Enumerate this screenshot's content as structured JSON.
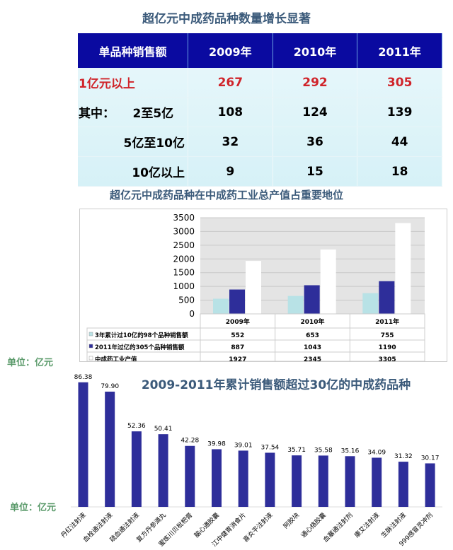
{
  "table1": {
    "title": "超亿元中成药品种数量增长显著",
    "headers": [
      "单品种销售额",
      "2009年",
      "2010年",
      "2011年"
    ],
    "rows": [
      {
        "label": "1亿元以上",
        "values": [
          "267",
          "292",
          "305"
        ]
      },
      {
        "label": "其中：　　2至5亿",
        "values": [
          "108",
          "124",
          "139"
        ]
      },
      {
        "label": "5亿至10亿",
        "values": [
          "32",
          "36",
          "44"
        ]
      },
      {
        "label": "10亿以上",
        "values": [
          "9",
          "15",
          "18"
        ]
      }
    ],
    "highlight_color": "#d0242a",
    "header_color": "#0a0aa0"
  },
  "chart_data": [
    {
      "type": "bar",
      "title": "超亿元中成药品种在中成药工业总产值占重要地位",
      "categories": [
        "2009年",
        "2010年",
        "2011年"
      ],
      "ylim": [
        0,
        3500
      ],
      "yticks": [
        0,
        500,
        1000,
        1500,
        2000,
        2500,
        3000,
        3500
      ],
      "grid": true,
      "legend": "data-table",
      "series": [
        {
          "name": "3年累计过10亿的98个品种销售额",
          "values": [
            552,
            653,
            755
          ],
          "color": "#b8e2e6"
        },
        {
          "name": "2011年过亿的305个品种销售额",
          "values": [
            887,
            1043,
            1190
          ],
          "color": "#2e2e9a"
        },
        {
          "name": "中成药工业产值",
          "values": [
            1927,
            2345,
            3305
          ],
          "color": "#ffffff"
        }
      ]
    },
    {
      "type": "bar",
      "title": "2009-2011年累计销售额超过30亿的中成药品种",
      "categories": [
        "丹红注射液",
        "血栓通注射液",
        "疏血通注射液",
        "复方丹参滴丸",
        "蜜炼川贝枇杷膏",
        "脑心通胶囊",
        "江中健胃消食片",
        "喜炎平注射液",
        "阿胶块",
        "通心络胶囊",
        "血塞通注射剂",
        "康艾注射液",
        "生脉注射液",
        "999感冒灵冲剂"
      ],
      "values": [
        86.38,
        79.9,
        52.36,
        50.41,
        42.28,
        39.98,
        39.01,
        37.54,
        35.71,
        35.58,
        35.16,
        34.09,
        31.32,
        30.17
      ],
      "labels": [
        "86.38",
        "79.90",
        "52.36",
        "50.41",
        "42.28",
        "39.98",
        "39.01",
        "37.54",
        "35.71",
        "35.58",
        "35.16",
        "34.09",
        "31.32",
        "30.17"
      ],
      "color": "#2e2e9a"
    }
  ],
  "units": {
    "top": "单位：亿元",
    "bottom": "单位：亿元"
  }
}
